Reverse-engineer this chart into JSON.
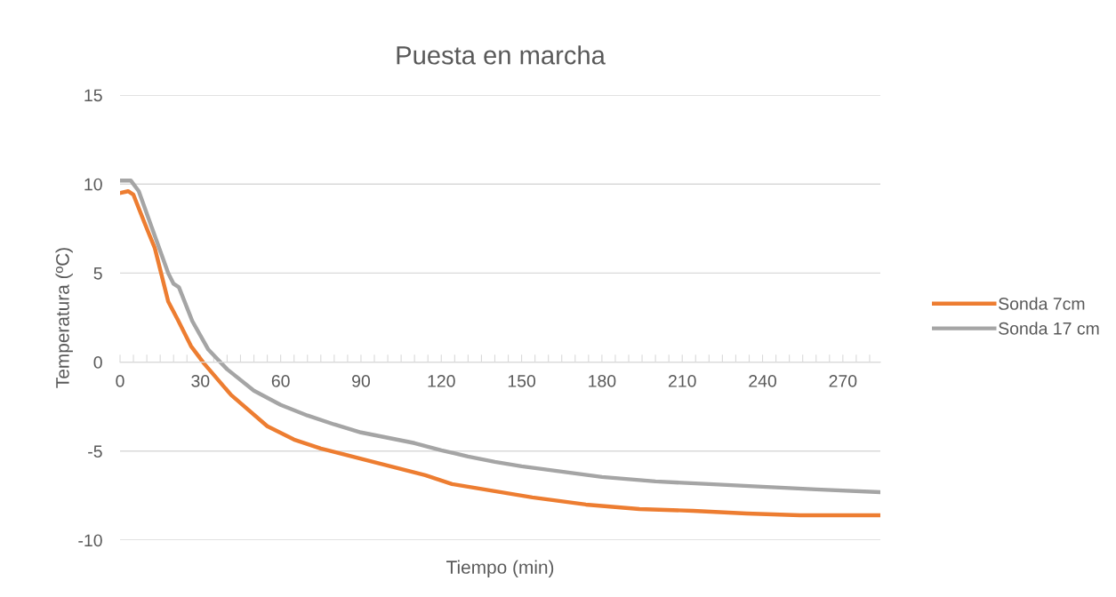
{
  "chart_data": {
    "type": "line",
    "title": "Puesta en marcha",
    "xlabel": "Tiempo (min)",
    "ylabel": "Temperatura (ºC)",
    "xlim": [
      0,
      284
    ],
    "ylim": [
      -10,
      15
    ],
    "yticks": [
      -10,
      -5,
      0,
      5,
      10,
      15
    ],
    "xticks": [
      0,
      {
        "value": 5,
        "label": null
      },
      {
        "value": 10,
        "label": null
      },
      {
        "value": 15,
        "label": null
      },
      {
        "value": 20,
        "label": null
      },
      {
        "value": 25,
        "label": null
      },
      30,
      {
        "value": 35,
        "label": null
      },
      {
        "value": 40,
        "label": null
      },
      {
        "value": 45,
        "label": null
      },
      {
        "value": 50,
        "label": null
      },
      {
        "value": 55,
        "label": null
      },
      60,
      {
        "value": 65,
        "label": null
      },
      {
        "value": 70,
        "label": null
      },
      {
        "value": 75,
        "label": null
      },
      {
        "value": 80,
        "label": null
      },
      {
        "value": 85,
        "label": null
      },
      90,
      {
        "value": 95,
        "label": null
      },
      {
        "value": 100,
        "label": null
      },
      {
        "value": 105,
        "label": null
      },
      {
        "value": 110,
        "label": null
      },
      {
        "value": 115,
        "label": null
      },
      120,
      {
        "value": 125,
        "label": null
      },
      {
        "value": 130,
        "label": null
      },
      {
        "value": 135,
        "label": null
      },
      {
        "value": 140,
        "label": null
      },
      {
        "value": 145,
        "label": null
      },
      150,
      {
        "value": 155,
        "label": null
      },
      {
        "value": 160,
        "label": null
      },
      {
        "value": 165,
        "label": null
      },
      {
        "value": 170,
        "label": null
      },
      {
        "value": 175,
        "label": null
      },
      180,
      {
        "value": 185,
        "label": null
      },
      {
        "value": 190,
        "label": null
      },
      {
        "value": 195,
        "label": null
      },
      {
        "value": 200,
        "label": null
      },
      {
        "value": 205,
        "label": null
      },
      210,
      {
        "value": 215,
        "label": null
      },
      {
        "value": 220,
        "label": null
      },
      {
        "value": 225,
        "label": null
      },
      {
        "value": 230,
        "label": null
      },
      {
        "value": 235,
        "label": null
      },
      240,
      {
        "value": 245,
        "label": null
      },
      {
        "value": 250,
        "label": null
      },
      {
        "value": 255,
        "label": null
      },
      {
        "value": 260,
        "label": null
      },
      {
        "value": 265,
        "label": null
      },
      270,
      {
        "value": 275,
        "label": null
      },
      {
        "value": 280,
        "label": null
      }
    ],
    "grid": "y",
    "legend": "right",
    "marker": "none",
    "line_style": "solid",
    "series": [
      {
        "name": "Sonda 7cm",
        "color": "#ed7d31",
        "x": [
          0,
          3,
          5,
          10,
          13,
          18,
          21.5,
          26.5,
          31.5,
          41.5,
          55,
          65,
          75,
          94.5,
          114,
          124,
          134,
          154,
          174,
          194,
          214,
          234,
          254,
          283.6
        ],
        "values": [
          9.5,
          9.6,
          9.4,
          7.5,
          6.4,
          3.4,
          2.4,
          0.9,
          -0.1,
          -1.85,
          -3.6,
          -4.35,
          -4.85,
          -5.6,
          -6.35,
          -6.85,
          -7.1,
          -7.6,
          -8.0,
          -8.25,
          -8.35,
          -8.5,
          -8.6,
          -8.6
        ]
      },
      {
        "name": "Sonda 17 cm",
        "color": "#a5a5a5",
        "x": [
          0,
          4,
          7,
          12,
          18,
          20,
          22,
          27,
          33,
          40,
          50,
          60,
          70,
          80,
          90,
          100,
          110,
          120,
          130,
          140,
          150,
          160,
          180,
          200,
          220,
          240,
          260,
          283.6
        ],
        "values": [
          10.2,
          10.2,
          9.6,
          7.5,
          5.0,
          4.4,
          4.2,
          2.3,
          0.7,
          -0.4,
          -1.6,
          -2.4,
          -3.0,
          -3.5,
          -3.95,
          -4.25,
          -4.55,
          -4.95,
          -5.3,
          -5.6,
          -5.85,
          -6.05,
          -6.45,
          -6.7,
          -6.85,
          -7.0,
          -7.15,
          -7.3
        ]
      }
    ]
  }
}
